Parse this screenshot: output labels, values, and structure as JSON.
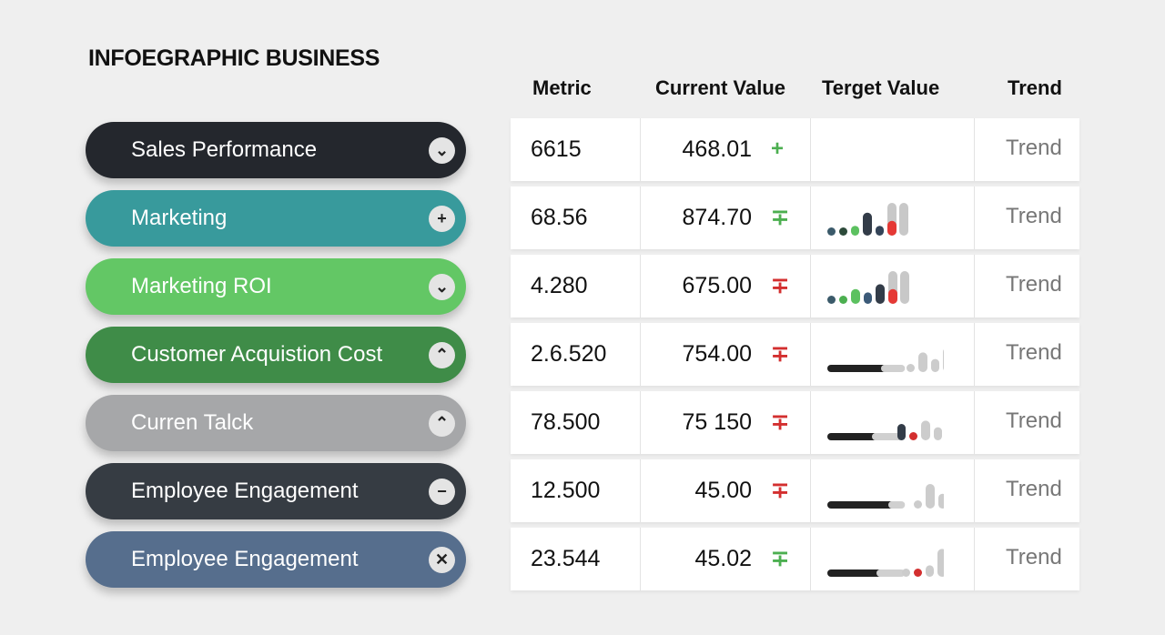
{
  "title": "INFOEGRAPHIC BUSINESS",
  "headers": {
    "metric": "Metric",
    "current": "Current Value",
    "target": "Terget Value",
    "trend": "Trend"
  },
  "categories": [
    {
      "label": "Sales Performance",
      "color": "#24272d",
      "icon": "chevron-down",
      "glyph": "⌄"
    },
    {
      "label": "Marketing",
      "color": "#389a9c",
      "icon": "plus",
      "glyph": "+"
    },
    {
      "label": "Marketing ROI",
      "color": "#63c765",
      "icon": "chevron-down",
      "glyph": "⌄"
    },
    {
      "label": "Customer Acquistion Cost",
      "color": "#3f8c48",
      "icon": "chevron-up",
      "glyph": "⌃"
    },
    {
      "label": "Curren Talck",
      "color": "#a6a7a9",
      "icon": "chevron-up",
      "glyph": "⌃"
    },
    {
      "label": "Employee Engagement",
      "color": "#363c43",
      "icon": "minus",
      "glyph": "−"
    },
    {
      "label": "Employee Engagement",
      "color": "#566e8d",
      "icon": "close",
      "glyph": "✕"
    }
  ],
  "rows": [
    {
      "metric": "6615",
      "current": "468.01",
      "sign": "+",
      "sign_color": "#4caf50",
      "trend": "Trend",
      "spark": []
    },
    {
      "metric": "68.56",
      "current": "874.70",
      "sign": "∓",
      "sign_color": "#4caf50",
      "trend": "Trend",
      "spark": [
        [
          "d",
          "#3b5a6a",
          0.2
        ],
        [
          "d",
          "#2c4a3a",
          0.2
        ],
        [
          "d",
          "#5cc160",
          0.3
        ],
        [
          "b",
          "#333c48",
          0.7
        ],
        [
          "d",
          "#344458",
          0.3
        ],
        [
          "r",
          "#e53935",
          0.45
        ],
        [
          "g",
          "#cccccc",
          1
        ]
      ]
    },
    {
      "metric": "4.280",
      "current": "675.00",
      "sign": "∓",
      "sign_color": "#d32f2f",
      "trend": "Trend",
      "spark": [
        [
          "d",
          "#3b5a6a",
          0.2
        ],
        [
          "d",
          "#4caf50",
          0.25
        ],
        [
          "b",
          "#5cc160",
          0.45
        ],
        [
          "d",
          "#3b5a78",
          0.35
        ],
        [
          "b",
          "#333c48",
          0.6
        ],
        [
          "r",
          "#e53935",
          0.45
        ],
        [
          "g",
          "#cccccc",
          1
        ]
      ]
    },
    {
      "metric": "2.6.520",
      "current": "754.00",
      "sign": "∓",
      "sign_color": "#d32f2f",
      "trend": "Trend",
      "spark": [
        [
          "l",
          "#222",
          0.65
        ],
        [
          "d",
          "#ccc",
          0.2
        ],
        [
          "b",
          "#ccc",
          0.6
        ],
        [
          "d",
          "#ccc",
          0.4
        ],
        [
          "b",
          "#ccc",
          0.75
        ]
      ]
    },
    {
      "metric": "78.500",
      "current": "75 150",
      "sign": "∓",
      "sign_color": "#d32f2f",
      "trend": "Trend",
      "spark": [
        [
          "l",
          "#222",
          0.55
        ],
        [
          "d",
          "#333c48",
          0.5
        ],
        [
          "d",
          "#d32f2f",
          0.2
        ],
        [
          "b",
          "#ccc",
          0.6
        ],
        [
          "d",
          "#ccc",
          0.4
        ],
        [
          "b",
          "#ccc",
          0.75
        ]
      ]
    },
    {
      "metric": "12.500",
      "current": "45.00",
      "sign": "∓",
      "sign_color": "#d32f2f",
      "trend": "Trend",
      "spark": [
        [
          "l",
          "#222",
          0.73
        ],
        [
          "d",
          "#ccc",
          0.2
        ],
        [
          "b",
          "#ccc",
          0.75
        ],
        [
          "d",
          "#ccc",
          0.45
        ],
        [
          "b",
          "#ccc",
          0.8
        ]
      ]
    },
    {
      "metric": "23.544",
      "current": "45.02",
      "sign": "∓",
      "sign_color": "#4caf50",
      "trend": "Trend",
      "spark": [
        [
          "l",
          "#222",
          0.6
        ],
        [
          "d",
          "#ccc",
          0.2
        ],
        [
          "d",
          "#d32f2f",
          0.25
        ],
        [
          "d",
          "#ccc",
          0.35
        ],
        [
          "b",
          "#ccc",
          0.85
        ]
      ]
    }
  ]
}
